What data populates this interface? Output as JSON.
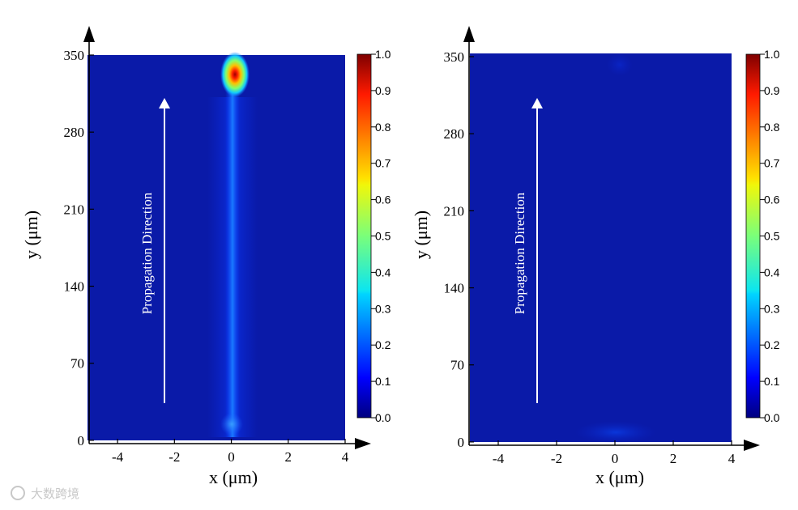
{
  "chart_data": [
    {
      "type": "heatmap",
      "title": "",
      "xlabel": "x (μm)",
      "ylabel": "y (μm)",
      "xlim": [
        -5,
        4
      ],
      "ylim": [
        -3,
        350
      ],
      "x_ticks": [
        -4,
        -2,
        0,
        2,
        4
      ],
      "y_ticks": [
        0,
        70,
        140,
        210,
        280,
        350
      ],
      "colorbar": {
        "min": 0.0,
        "max": 1.0,
        "ticks": [
          "0.0",
          "0.1",
          "0.2",
          "0.3",
          "0.4",
          "0.5",
          "0.6",
          "0.7",
          "0.8",
          "0.9",
          "1.0"
        ],
        "colormap": "jet"
      },
      "annotation": "Propagation Direction",
      "features": [
        {
          "description": "beam centerline",
          "x": 0,
          "y_start": 0,
          "y_end": 320,
          "intensity": 0.3
        },
        {
          "description": "input spot",
          "x": 0,
          "y": 10,
          "intensity": 0.3
        },
        {
          "description": "focal hotspot",
          "x": 0.2,
          "y": 335,
          "intensity": 1.0
        }
      ]
    },
    {
      "type": "heatmap",
      "title": "",
      "xlabel": "x (μm)",
      "ylabel": "y (μm)",
      "xlim": [
        -5,
        4
      ],
      "ylim": [
        -3,
        350
      ],
      "x_ticks": [
        -4,
        -2,
        0,
        2,
        4
      ],
      "y_ticks": [
        0,
        70,
        140,
        210,
        280,
        350
      ],
      "colorbar": {
        "min": 0.0,
        "max": 1.0,
        "ticks": [
          "0.0",
          "0.1",
          "0.2",
          "0.3",
          "0.4",
          "0.5",
          "0.6",
          "0.7",
          "0.8",
          "0.9",
          "1.0"
        ],
        "colormap": "jet"
      },
      "annotation": "Propagation Direction",
      "features": [
        {
          "description": "input spot",
          "x": 0,
          "y": 5,
          "intensity": 0.12
        },
        {
          "description": "faint top spot",
          "x": 0,
          "y": 345,
          "intensity": 0.08
        }
      ]
    }
  ],
  "watermark": "大数跨境"
}
